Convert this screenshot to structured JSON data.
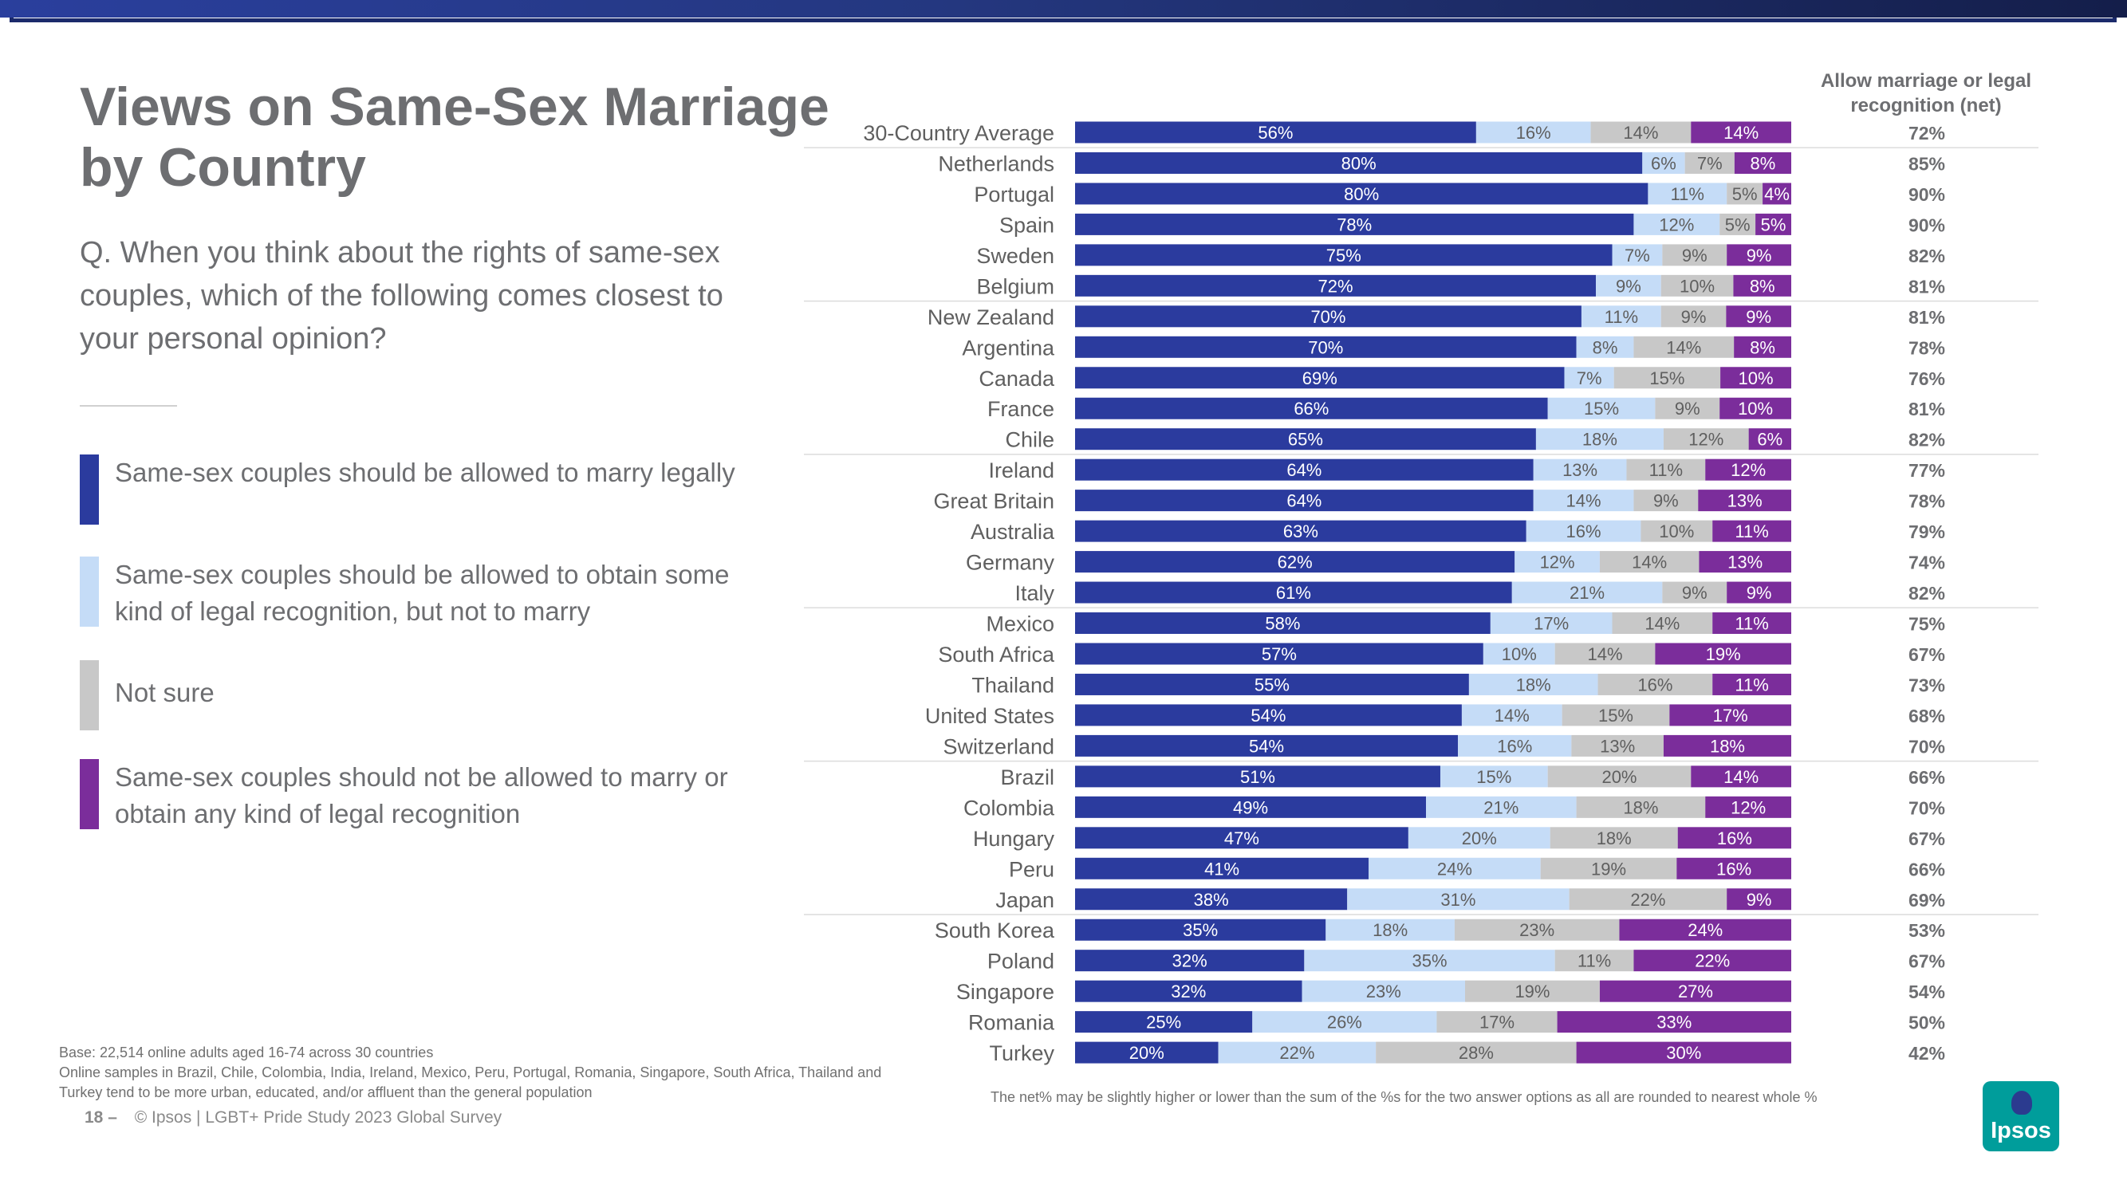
{
  "title": "Views on Same-Sex Marriage by Country",
  "question": "Q. When you think about the rights of same-sex couples, which of the following comes closest to your personal opinion?",
  "legend": [
    {
      "label": "Same-sex couples should be allowed to marry legally",
      "color": "#2b3b9e"
    },
    {
      "label": "Same-sex couples should be allowed to obtain some kind of legal recognition, but not to marry",
      "color": "#c5dcf7"
    },
    {
      "label": "Not sure",
      "color": "#c8c8c8"
    },
    {
      "label": "Same-sex couples should not be allowed to marry or obtain any kind of legal recognition",
      "color": "#7b2d9b"
    }
  ],
  "net_header": "Allow marriage or legal recognition (net)",
  "footnote_base": "Base: 22,514 online adults aged 16-74 across 30 countries\nOnline samples in Brazil, Chile, Colombia, India, Ireland, Mexico, Peru, Portugal, Romania, Singapore, South Africa, Thailand and Turkey tend to be more urban, educated, and/or affluent than the general population",
  "footnote_net": "The net% may be slightly higher or lower than the sum of the %s for the two answer options as all are rounded to nearest whole %",
  "footer": {
    "page": "18 –",
    "text": "© Ipsos | LGBT+ Pride Study 2023 Global Survey"
  },
  "logo_text": "Ipsos",
  "chart_data": {
    "type": "bar",
    "stacked": true,
    "orientation": "horizontal",
    "categories": [
      "30-Country Average",
      "Netherlands",
      "Portugal",
      "Spain",
      "Sweden",
      "Belgium",
      "New Zealand",
      "Argentina",
      "Canada",
      "France",
      "Chile",
      "Ireland",
      "Great Britain",
      "Australia",
      "Germany",
      "Italy",
      "Mexico",
      "South Africa",
      "Thailand",
      "United States",
      "Switzerland",
      "Brazil",
      "Colombia",
      "Hungary",
      "Peru",
      "Japan",
      "South Korea",
      "Poland",
      "Singapore",
      "Romania",
      "Turkey"
    ],
    "series": [
      {
        "color": "#2b3b9e",
        "values": [
          56,
          80,
          80,
          78,
          75,
          72,
          70,
          70,
          69,
          66,
          65,
          64,
          64,
          63,
          62,
          61,
          58,
          57,
          55,
          54,
          54,
          51,
          49,
          47,
          41,
          38,
          35,
          32,
          32,
          25,
          20
        ]
      },
      {
        "color": "#c5dcf7",
        "values": [
          16,
          6,
          11,
          12,
          7,
          9,
          11,
          8,
          7,
          15,
          18,
          13,
          14,
          16,
          12,
          21,
          17,
          10,
          18,
          14,
          16,
          15,
          21,
          20,
          24,
          31,
          18,
          35,
          23,
          26,
          22
        ]
      },
      {
        "color": "#c8c8c8",
        "values": [
          14,
          7,
          5,
          5,
          9,
          10,
          9,
          14,
          15,
          9,
          12,
          11,
          9,
          10,
          14,
          9,
          14,
          14,
          16,
          15,
          13,
          20,
          18,
          18,
          19,
          22,
          23,
          11,
          19,
          17,
          28
        ]
      },
      {
        "color": "#7b2d9b",
        "values": [
          14,
          8,
          4,
          5,
          9,
          8,
          9,
          8,
          10,
          10,
          6,
          12,
          13,
          11,
          13,
          9,
          11,
          19,
          11,
          17,
          18,
          14,
          12,
          16,
          16,
          9,
          24,
          22,
          27,
          33,
          30
        ]
      }
    ],
    "net": [
      72,
      85,
      90,
      90,
      82,
      81,
      81,
      78,
      76,
      81,
      82,
      77,
      78,
      79,
      74,
      82,
      75,
      67,
      73,
      68,
      70,
      66,
      70,
      67,
      66,
      69,
      53,
      67,
      54,
      50,
      42
    ],
    "value_suffix": "%",
    "separators_after": [
      0,
      5,
      10,
      15,
      20,
      25
    ]
  }
}
